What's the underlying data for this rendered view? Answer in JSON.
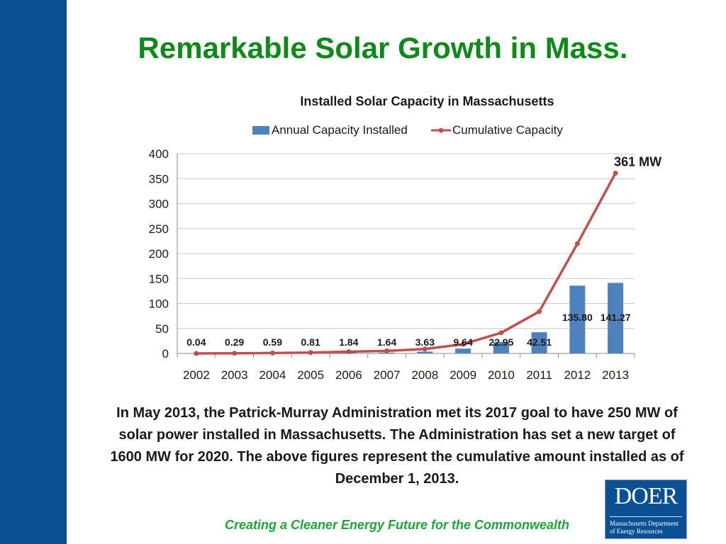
{
  "slide": {
    "title": "Remarkable Solar Growth in Mass.",
    "body_text": "In May 2013, the Patrick-Murray Administration met its 2017 goal to have 250 MW of solar power installed in Massachusetts. The Administration has set a new target of 1600 MW for 2020. The above figures represent the cumulative amount installed as of December 1, 2013.",
    "tagline": "Creating a Cleaner Energy Future for the Commonwealth",
    "logo": {
      "mark": "DOER",
      "subtitle_line1": "Massachusetts Department",
      "subtitle_line2": "of Energy Resources"
    }
  },
  "colors": {
    "sidebar": "#0b4f94",
    "title": "#0f8a1a",
    "bar": "#4f81bd",
    "line": "#c0504d",
    "tagline": "#1fa43a"
  },
  "chart_data": {
    "type": "bar",
    "title": "Installed Solar Capacity in Massachusetts",
    "categories": [
      "2002",
      "2003",
      "2004",
      "2005",
      "2006",
      "2007",
      "2008",
      "2009",
      "2010",
      "2011",
      "2012",
      "2013"
    ],
    "series": [
      {
        "name": "Annual Capacity Installed",
        "kind": "bar",
        "values": [
          0.04,
          0.29,
          0.59,
          0.81,
          1.84,
          1.64,
          3.63,
          9.64,
          22.95,
          42.51,
          135.8,
          141.27
        ],
        "labels": [
          "0.04",
          "0.29",
          "0.59",
          "0.81",
          "1.84",
          "1.64",
          "3.63",
          "9.64",
          "22.95",
          "42.51",
          "135.80",
          "141.27"
        ]
      },
      {
        "name": "Cumulative Capacity",
        "kind": "line",
        "values": [
          0.04,
          0.33,
          0.92,
          1.73,
          3.57,
          5.21,
          8.84,
          18.48,
          41.43,
          83.94,
          219.74,
          361.01
        ]
      }
    ],
    "annotation": "361 MW",
    "yticks": [
      0,
      50,
      100,
      150,
      200,
      250,
      300,
      350,
      400
    ],
    "ylim": [
      0,
      400
    ],
    "grid": true,
    "legend_position": "top"
  }
}
